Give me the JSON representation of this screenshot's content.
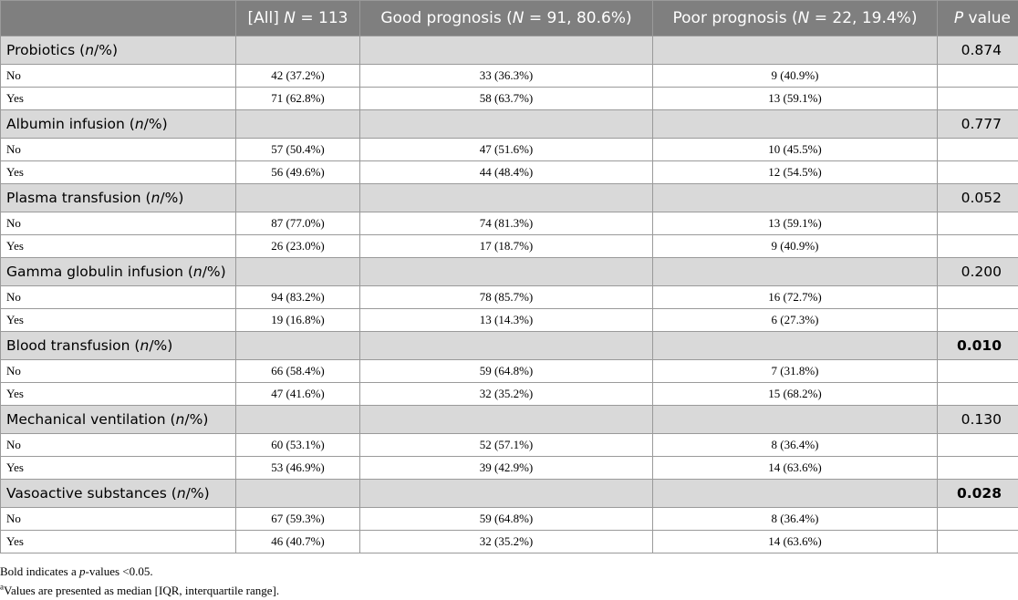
{
  "header": {
    "col0": "",
    "col1_pre": "[All] ",
    "col1_italic": "N",
    "col1_post": " = 113",
    "col2_pre": "Good prognosis (",
    "col2_italic": "N",
    "col2_post": " = 91, 80.6%)",
    "col3_pre": "Poor prognosis (",
    "col3_italic": "N",
    "col3_post": " = 22, 19.4%)",
    "col4_italic": "P",
    "col4_post": " value"
  },
  "groups": [
    {
      "name": "Probiotics",
      "unit": "n",
      "suffix": "/%)",
      "p": "0.874",
      "bold": false,
      "rows": [
        {
          "label": "No",
          "all": "42 (37.2%)",
          "good": "33 (36.3%)",
          "poor": "9 (40.9%)"
        },
        {
          "label": "Yes",
          "all": "71 (62.8%)",
          "good": "58 (63.7%)",
          "poor": "13 (59.1%)"
        }
      ]
    },
    {
      "name": "Albumin infusion",
      "unit": "n",
      "suffix": "/%)",
      "p": "0.777",
      "bold": false,
      "rows": [
        {
          "label": "No",
          "all": "57 (50.4%)",
          "good": "47 (51.6%)",
          "poor": "10 (45.5%)"
        },
        {
          "label": "Yes",
          "all": "56 (49.6%)",
          "good": "44 (48.4%)",
          "poor": "12 (54.5%)"
        }
      ]
    },
    {
      "name": "Plasma transfusion",
      "unit": "n",
      "suffix": "/%)",
      "p": "0.052",
      "bold": false,
      "rows": [
        {
          "label": "No",
          "all": "87 (77.0%)",
          "good": "74 (81.3%)",
          "poor": "13 (59.1%)"
        },
        {
          "label": "Yes",
          "all": "26 (23.0%)",
          "good": "17 (18.7%)",
          "poor": "9 (40.9%)"
        }
      ]
    },
    {
      "name": "Gamma globulin infusion",
      "unit": "n",
      "suffix": "/%)",
      "p": "0.200",
      "bold": false,
      "rows": [
        {
          "label": "No",
          "all": "94 (83.2%)",
          "good": "78 (85.7%)",
          "poor": "16 (72.7%)"
        },
        {
          "label": "Yes",
          "all": "19 (16.8%)",
          "good": "13 (14.3%)",
          "poor": "6 (27.3%)"
        }
      ]
    },
    {
      "name": "Blood transfusion",
      "unit": "n",
      "suffix": "/%)",
      "p": "0.010",
      "bold": true,
      "rows": [
        {
          "label": "No",
          "all": "66 (58.4%)",
          "good": "59 (64.8%)",
          "poor": "7 (31.8%)"
        },
        {
          "label": "Yes",
          "all": "47 (41.6%)",
          "good": "32 (35.2%)",
          "poor": "15 (68.2%)"
        }
      ]
    },
    {
      "name": "Mechanical ventilation",
      "unit": "n",
      "suffix": "/%)",
      "p": "0.130",
      "bold": false,
      "rows": [
        {
          "label": "No",
          "all": "60 (53.1%)",
          "good": "52 (57.1%)",
          "poor": "8 (36.4%)"
        },
        {
          "label": "Yes",
          "all": "53 (46.9%)",
          "good": "39 (42.9%)",
          "poor": "14 (63.6%)"
        }
      ]
    },
    {
      "name": "Vasoactive substances",
      "unit": "n",
      "suffix": "/%)",
      "p": "0.028",
      "bold": true,
      "rows": [
        {
          "label": "No",
          "all": "67 (59.3%)",
          "good": "59 (64.8%)",
          "poor": "8 (36.4%)"
        },
        {
          "label": "Yes",
          "all": "46 (40.7%)",
          "good": "32 (35.2%)",
          "poor": "14 (63.6%)"
        }
      ]
    }
  ],
  "notes": {
    "note1_pre": "Bold indicates a ",
    "note1_italic": "p",
    "note1_post": "-values <0.05.",
    "note2_sup": "a",
    "note2_text": "Values are presented as median [IQR, interquartile range]."
  }
}
